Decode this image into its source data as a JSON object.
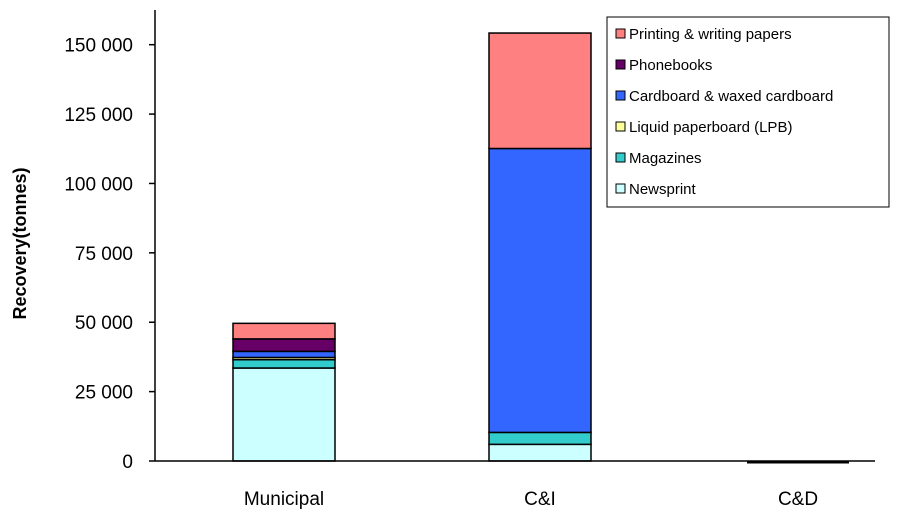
{
  "chart_data": {
    "type": "bar",
    "stacked": true,
    "title": "",
    "xlabel": "",
    "ylabel": "Recovery(tonnes)",
    "ylim": [
      0,
      162500
    ],
    "yticks": [
      0,
      25000,
      50000,
      75000,
      100000,
      125000,
      150000
    ],
    "ytick_labels": [
      "0",
      "25 000",
      "50 000",
      "75 000",
      "100 000",
      "125 000",
      "150 000"
    ],
    "grid": false,
    "legend_position": "top-right",
    "categories": [
      "Municipal",
      "C&I",
      "C&D"
    ],
    "series": [
      {
        "name": "Newsprint",
        "color": "#ccffff",
        "values": [
          33500,
          6000,
          0
        ]
      },
      {
        "name": "Magazines",
        "color": "#33cccc",
        "values": [
          3000,
          4300,
          0
        ]
      },
      {
        "name": "Liquid paperboard (LPB)",
        "color": "#ffff99",
        "values": [
          800,
          0,
          0
        ]
      },
      {
        "name": "Cardboard & waxed cardboard",
        "color": "#3366ff",
        "values": [
          2200,
          102300,
          0
        ]
      },
      {
        "name": "Phonebooks",
        "color": "#660066",
        "values": [
          4500,
          0,
          0
        ]
      },
      {
        "name": "Printing & writing papers",
        "color": "#ff8080",
        "values": [
          5600,
          41600,
          0
        ]
      }
    ],
    "legend_order": [
      "Printing & writing papers",
      "Phonebooks",
      "Cardboard & waxed cardboard",
      "Liquid paperboard (LPB)",
      "Magazines",
      "Newsprint"
    ]
  }
}
